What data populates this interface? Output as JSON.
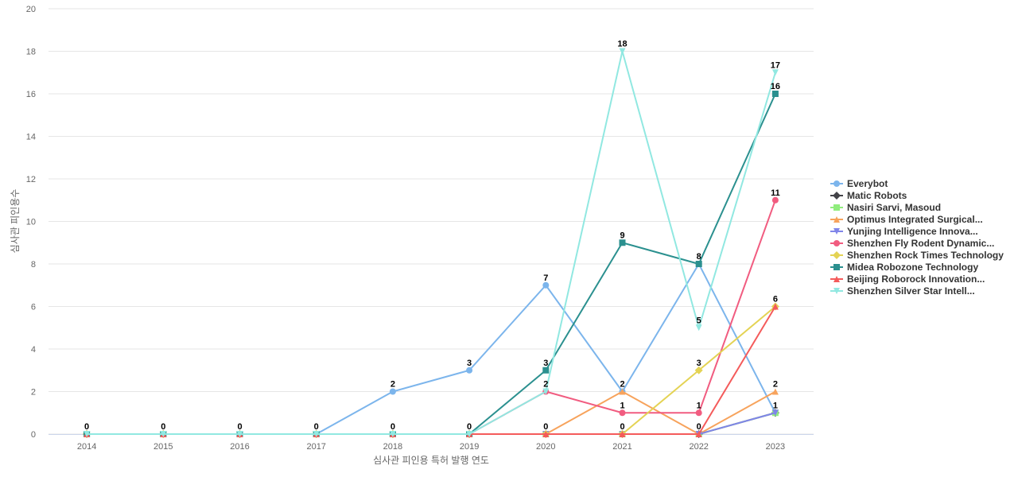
{
  "chart_data": {
    "type": "line",
    "title": "",
    "xlabel": "심사관 피인용 특허 발행 연도",
    "ylabel": "심사관 피인용수",
    "x": [
      "2014",
      "2015",
      "2016",
      "2017",
      "2018",
      "2019",
      "2020",
      "2021",
      "2022",
      "2023"
    ],
    "ylim": [
      0,
      20
    ],
    "yticks": [
      0,
      2,
      4,
      6,
      8,
      10,
      12,
      14,
      16,
      18,
      20
    ],
    "grid": true,
    "legend_position": "right",
    "series": [
      {
        "name": "Everybot",
        "color": "#7cb5ec",
        "marker": "circle",
        "values": [
          0,
          0,
          0,
          0,
          2,
          3,
          7,
          2,
          8,
          1
        ]
      },
      {
        "name": "Matic Robots",
        "color": "#434348",
        "marker": "diamond",
        "values": [
          0,
          0,
          0,
          0,
          0,
          0,
          0,
          0,
          0,
          1
        ]
      },
      {
        "name": "Nasiri Sarvi, Masoud",
        "color": "#90ed7d",
        "marker": "square",
        "values": [
          0,
          0,
          0,
          0,
          0,
          0,
          0,
          0,
          0,
          1
        ]
      },
      {
        "name": "Optimus Integrated Surgical...",
        "color": "#f7a35c",
        "marker": "triangle",
        "values": [
          0,
          0,
          0,
          0,
          0,
          0,
          0,
          2,
          0,
          2
        ]
      },
      {
        "name": "Yunjing Intelligence Innova...",
        "color": "#8085e9",
        "marker": "triangle-down",
        "values": [
          0,
          0,
          0,
          0,
          0,
          0,
          0,
          0,
          0,
          1
        ]
      },
      {
        "name": "Shenzhen Fly Rodent Dynamic...",
        "color": "#f15c80",
        "marker": "circle",
        "values": [
          0,
          0,
          0,
          0,
          0,
          0,
          2,
          1,
          1,
          11
        ]
      },
      {
        "name": "Shenzhen Rock Times Technology",
        "color": "#e4d354",
        "marker": "diamond",
        "values": [
          0,
          0,
          0,
          0,
          0,
          0,
          0,
          0,
          3,
          6
        ]
      },
      {
        "name": "Midea Robozone Technology",
        "color": "#2b908f",
        "marker": "square",
        "values": [
          0,
          0,
          0,
          0,
          0,
          0,
          3,
          9,
          8,
          16
        ]
      },
      {
        "name": "Beijing Roborock Innovation...",
        "color": "#f45b5b",
        "marker": "triangle",
        "values": [
          0,
          0,
          0,
          0,
          0,
          0,
          0,
          0,
          0,
          6
        ]
      },
      {
        "name": "Shenzhen Silver Star Intell...",
        "color": "#91e8e1",
        "marker": "triangle-down",
        "values": [
          0,
          0,
          0,
          0,
          0,
          0,
          2,
          18,
          5,
          17
        ]
      }
    ],
    "data_labels": [
      {
        "x": "2014",
        "value": 0
      },
      {
        "x": "2015",
        "value": 0
      },
      {
        "x": "2016",
        "value": 0
      },
      {
        "x": "2017",
        "value": 0
      },
      {
        "x": "2018",
        "value": 2
      },
      {
        "x": "2018",
        "value": 0
      },
      {
        "x": "2019",
        "value": 3
      },
      {
        "x": "2019",
        "value": 0
      },
      {
        "x": "2020",
        "value": 7
      },
      {
        "x": "2020",
        "value": 3
      },
      {
        "x": "2020",
        "value": 2
      },
      {
        "x": "2020",
        "value": 0
      },
      {
        "x": "2021",
        "value": 18
      },
      {
        "x": "2021",
        "value": 9
      },
      {
        "x": "2021",
        "value": 2
      },
      {
        "x": "2021",
        "value": 1
      },
      {
        "x": "2021",
        "value": 0
      },
      {
        "x": "2022",
        "value": 8
      },
      {
        "x": "2022",
        "value": 5
      },
      {
        "x": "2022",
        "value": 3
      },
      {
        "x": "2022",
        "value": 1
      },
      {
        "x": "2022",
        "value": 0
      },
      {
        "x": "2023",
        "value": 17
      },
      {
        "x": "2023",
        "value": 16
      },
      {
        "x": "2023",
        "value": 11
      },
      {
        "x": "2023",
        "value": 6
      },
      {
        "x": "2023",
        "value": 2
      },
      {
        "x": "2023",
        "value": 1
      }
    ]
  }
}
